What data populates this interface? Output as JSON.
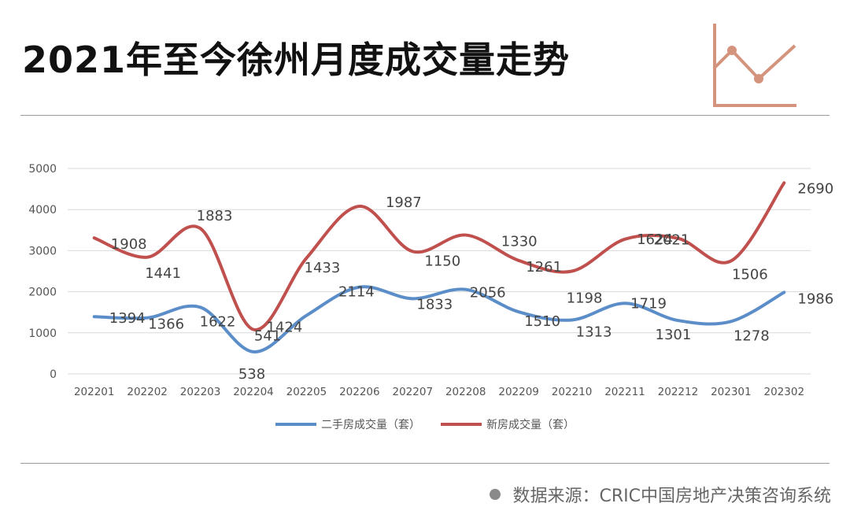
{
  "page": {
    "title": "2021年至今徐州月度成交量走势"
  },
  "source": {
    "text": "数据来源：CRIC中国房地产决策咨询系统"
  },
  "colors": {
    "accent_icon": "#d4937c",
    "second_hand": "#5b8ec9",
    "new_house": "#c0504d",
    "grid": "#d9d9d9",
    "rule": "#9a9a9a"
  },
  "icons": {
    "corner": "line-chart-icon",
    "source_bullet": "bullet-dot-icon"
  },
  "chart_data": {
    "type": "line",
    "categories": [
      "202201",
      "202202",
      "202203",
      "202204",
      "202205",
      "202206",
      "202207",
      "202208",
      "202209",
      "202210",
      "202211",
      "202212",
      "202301",
      "202302"
    ],
    "y_ticks": [
      "0",
      "1000",
      "2000",
      "3000",
      "4000",
      "5000"
    ],
    "ylim": [
      0,
      5000
    ],
    "grid": true,
    "legend_position": "bottom",
    "series": [
      {
        "name": "二手房成交量（套）",
        "color": "#5b8ec9",
        "values": [
          1394,
          1366,
          1622,
          538,
          1424,
          2114,
          1833,
          2056,
          1510,
          1313,
          1719,
          1301,
          1278,
          1986
        ],
        "labels": [
          "1394",
          "1366",
          "1622",
          "538",
          "1424",
          "2114",
          "1833",
          "2056",
          "1510",
          "1313",
          "1719",
          "1301",
          "1278",
          "1986"
        ]
      },
      {
        "name": "新房成交量（套）",
        "color": "#c0504d",
        "values": [
          3310,
          2840,
          3540,
          1080,
          2820,
          4080,
          2980,
          3380,
          2760,
          2500,
          3280,
          3300,
          2750,
          4650
        ],
        "labels": [
          "1908",
          "1441",
          "1883",
          "541",
          "1433",
          "1987",
          "1150",
          "1330",
          "1261",
          "1198",
          "1624",
          "2021",
          "1506",
          "2690"
        ]
      }
    ]
  }
}
